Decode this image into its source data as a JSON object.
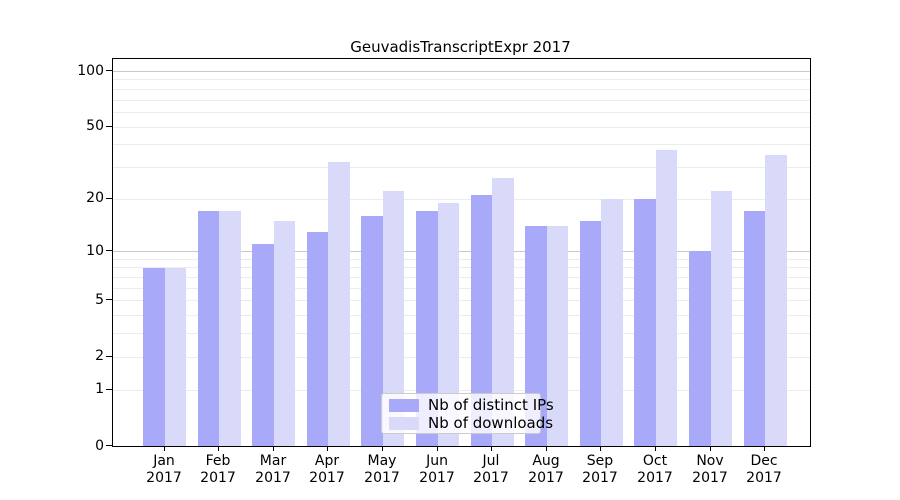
{
  "chart_data": {
    "type": "bar",
    "title": "GeuvadisTranscriptExpr 2017",
    "categories": [
      "Jan",
      "Feb",
      "Mar",
      "Apr",
      "May",
      "Jun",
      "Jul",
      "Aug",
      "Sep",
      "Oct",
      "Nov",
      "Dec"
    ],
    "year_label": "2017",
    "series": [
      {
        "name": "Nb of distinct IPs",
        "color": "#a9a9f9",
        "values": [
          8,
          17,
          11,
          13,
          16,
          17,
          21,
          14,
          15,
          20,
          10,
          17
        ]
      },
      {
        "name": "Nb of downloads",
        "color": "#d9d9f9",
        "values": [
          8,
          17,
          15,
          32,
          22,
          19,
          26,
          14,
          20,
          37,
          22,
          35
        ]
      }
    ],
    "y_axis": {
      "scale": "log1p",
      "tick_values": [
        0,
        1,
        2,
        5,
        10,
        20,
        50,
        100
      ],
      "tick_labels": [
        "0",
        "1",
        "2",
        "5",
        "10",
        "20",
        "50",
        "100"
      ],
      "minor_gridlines": [
        1,
        2,
        3,
        4,
        5,
        6,
        7,
        8,
        9,
        10,
        20,
        30,
        40,
        50,
        60,
        70,
        80,
        90,
        100
      ],
      "emphasized_gridlines": [
        10,
        100
      ],
      "max": 100
    },
    "legend": {
      "position": "lower-center"
    },
    "grid": true
  },
  "colors": {
    "bar_ips": "#a9a9f9",
    "bar_downloads": "#d9d9f9",
    "grid_minor": "#ececec",
    "grid_major": "#c9c9c9",
    "spine": "#000000",
    "legend_border": "#cccccc"
  }
}
